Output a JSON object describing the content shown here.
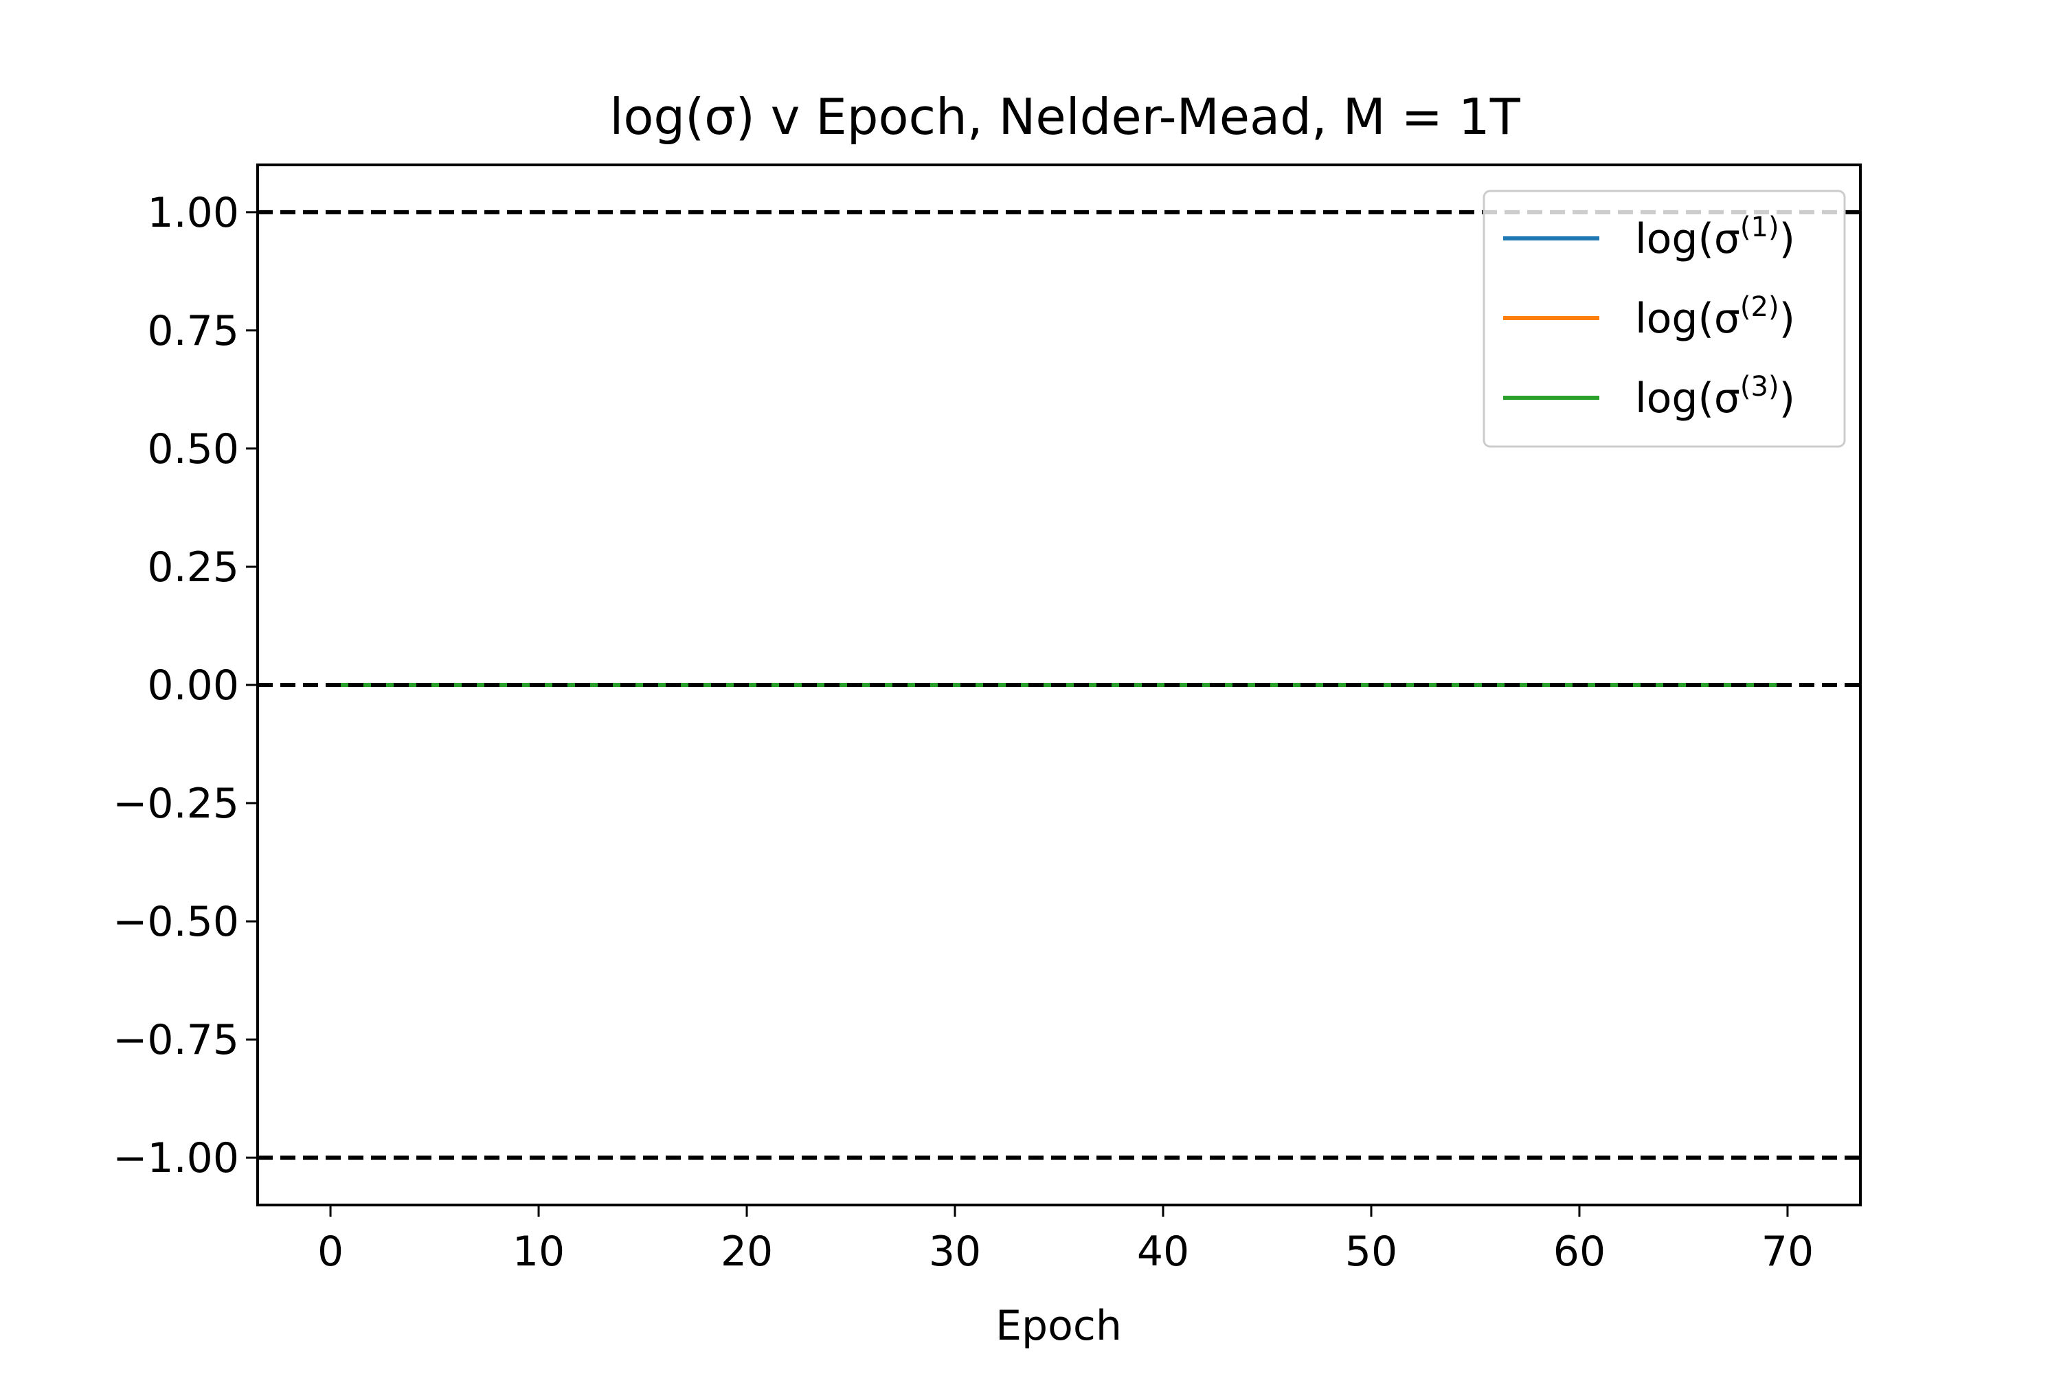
{
  "chart_data": {
    "type": "line",
    "title": "log(σ) v Epoch, Nelder-Mead, M = 1T",
    "xlabel": "Epoch",
    "ylabel": "",
    "xlim": [
      -3.5,
      73.5
    ],
    "ylim": [
      -1.1,
      1.1
    ],
    "xticks": [
      0,
      10,
      20,
      30,
      40,
      50,
      60,
      70
    ],
    "xtick_labels": [
      "0",
      "10",
      "20",
      "30",
      "40",
      "50",
      "60",
      "70"
    ],
    "yticks": [
      1.0,
      0.75,
      0.5,
      0.25,
      0.0,
      -0.25,
      -0.5,
      -0.75,
      -1.0
    ],
    "ytick_labels": [
      "1.00",
      "0.75",
      "0.50",
      "0.25",
      "0.00",
      "−0.25",
      "−0.50",
      "−0.75",
      "−1.00"
    ],
    "grid": false,
    "legend_position": "top-right",
    "series": [
      {
        "name": "log(σ(1))",
        "legend_base": "log(σ",
        "legend_sup": "(1)",
        "legend_close": ")",
        "color": "#1f77b4",
        "x": [
          0,
          70
        ],
        "y": [
          0,
          0
        ]
      },
      {
        "name": "log(σ(2))",
        "legend_base": "log(σ",
        "legend_sup": "(2)",
        "legend_close": ")",
        "color": "#ff7f0e",
        "x": [
          0,
          70
        ],
        "y": [
          0,
          0
        ]
      },
      {
        "name": "log(σ(3))",
        "legend_base": "log(σ",
        "legend_sup": "(3)",
        "legend_close": ")",
        "color": "#2ca02c",
        "x": [
          0,
          70
        ],
        "y": [
          0,
          0
        ]
      }
    ],
    "reference_lines": [
      {
        "y": 1.0,
        "style": "dashed",
        "color": "#000000"
      },
      {
        "y": 0.0,
        "style": "dashed",
        "color": "#000000"
      },
      {
        "y": -1.0,
        "style": "dashed",
        "color": "#000000"
      }
    ]
  }
}
